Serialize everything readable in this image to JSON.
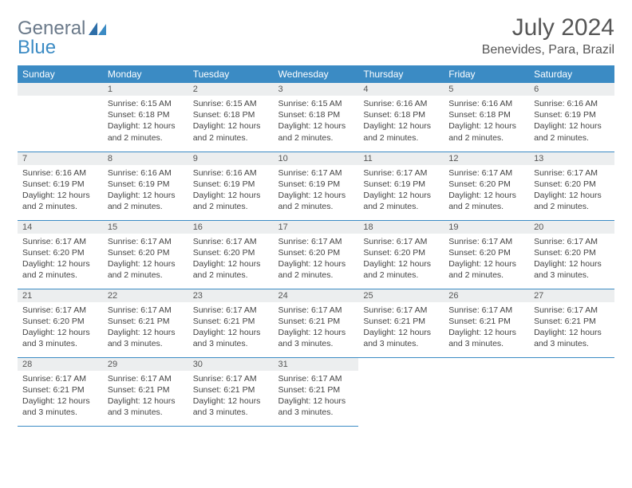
{
  "brand": {
    "word1": "General",
    "word2": "Blue"
  },
  "title": "July 2024",
  "location": "Benevides, Para, Brazil",
  "weekdays": [
    "Sunday",
    "Monday",
    "Tuesday",
    "Wednesday",
    "Thursday",
    "Friday",
    "Saturday"
  ],
  "colors": {
    "header_bg": "#3b8bc4",
    "stripe_bg": "#eceeef",
    "text": "#565656"
  },
  "weeks": [
    [
      {
        "n": "",
        "lines": []
      },
      {
        "n": "1",
        "lines": [
          "Sunrise: 6:15 AM",
          "Sunset: 6:18 PM",
          "Daylight: 12 hours and 2 minutes."
        ]
      },
      {
        "n": "2",
        "lines": [
          "Sunrise: 6:15 AM",
          "Sunset: 6:18 PM",
          "Daylight: 12 hours and 2 minutes."
        ]
      },
      {
        "n": "3",
        "lines": [
          "Sunrise: 6:15 AM",
          "Sunset: 6:18 PM",
          "Daylight: 12 hours and 2 minutes."
        ]
      },
      {
        "n": "4",
        "lines": [
          "Sunrise: 6:16 AM",
          "Sunset: 6:18 PM",
          "Daylight: 12 hours and 2 minutes."
        ]
      },
      {
        "n": "5",
        "lines": [
          "Sunrise: 6:16 AM",
          "Sunset: 6:18 PM",
          "Daylight: 12 hours and 2 minutes."
        ]
      },
      {
        "n": "6",
        "lines": [
          "Sunrise: 6:16 AM",
          "Sunset: 6:19 PM",
          "Daylight: 12 hours and 2 minutes."
        ]
      }
    ],
    [
      {
        "n": "7",
        "lines": [
          "Sunrise: 6:16 AM",
          "Sunset: 6:19 PM",
          "Daylight: 12 hours and 2 minutes."
        ]
      },
      {
        "n": "8",
        "lines": [
          "Sunrise: 6:16 AM",
          "Sunset: 6:19 PM",
          "Daylight: 12 hours and 2 minutes."
        ]
      },
      {
        "n": "9",
        "lines": [
          "Sunrise: 6:16 AM",
          "Sunset: 6:19 PM",
          "Daylight: 12 hours and 2 minutes."
        ]
      },
      {
        "n": "10",
        "lines": [
          "Sunrise: 6:17 AM",
          "Sunset: 6:19 PM",
          "Daylight: 12 hours and 2 minutes."
        ]
      },
      {
        "n": "11",
        "lines": [
          "Sunrise: 6:17 AM",
          "Sunset: 6:19 PM",
          "Daylight: 12 hours and 2 minutes."
        ]
      },
      {
        "n": "12",
        "lines": [
          "Sunrise: 6:17 AM",
          "Sunset: 6:20 PM",
          "Daylight: 12 hours and 2 minutes."
        ]
      },
      {
        "n": "13",
        "lines": [
          "Sunrise: 6:17 AM",
          "Sunset: 6:20 PM",
          "Daylight: 12 hours and 2 minutes."
        ]
      }
    ],
    [
      {
        "n": "14",
        "lines": [
          "Sunrise: 6:17 AM",
          "Sunset: 6:20 PM",
          "Daylight: 12 hours and 2 minutes."
        ]
      },
      {
        "n": "15",
        "lines": [
          "Sunrise: 6:17 AM",
          "Sunset: 6:20 PM",
          "Daylight: 12 hours and 2 minutes."
        ]
      },
      {
        "n": "16",
        "lines": [
          "Sunrise: 6:17 AM",
          "Sunset: 6:20 PM",
          "Daylight: 12 hours and 2 minutes."
        ]
      },
      {
        "n": "17",
        "lines": [
          "Sunrise: 6:17 AM",
          "Sunset: 6:20 PM",
          "Daylight: 12 hours and 2 minutes."
        ]
      },
      {
        "n": "18",
        "lines": [
          "Sunrise: 6:17 AM",
          "Sunset: 6:20 PM",
          "Daylight: 12 hours and 2 minutes."
        ]
      },
      {
        "n": "19",
        "lines": [
          "Sunrise: 6:17 AM",
          "Sunset: 6:20 PM",
          "Daylight: 12 hours and 2 minutes."
        ]
      },
      {
        "n": "20",
        "lines": [
          "Sunrise: 6:17 AM",
          "Sunset: 6:20 PM",
          "Daylight: 12 hours and 3 minutes."
        ]
      }
    ],
    [
      {
        "n": "21",
        "lines": [
          "Sunrise: 6:17 AM",
          "Sunset: 6:20 PM",
          "Daylight: 12 hours and 3 minutes."
        ]
      },
      {
        "n": "22",
        "lines": [
          "Sunrise: 6:17 AM",
          "Sunset: 6:21 PM",
          "Daylight: 12 hours and 3 minutes."
        ]
      },
      {
        "n": "23",
        "lines": [
          "Sunrise: 6:17 AM",
          "Sunset: 6:21 PM",
          "Daylight: 12 hours and 3 minutes."
        ]
      },
      {
        "n": "24",
        "lines": [
          "Sunrise: 6:17 AM",
          "Sunset: 6:21 PM",
          "Daylight: 12 hours and 3 minutes."
        ]
      },
      {
        "n": "25",
        "lines": [
          "Sunrise: 6:17 AM",
          "Sunset: 6:21 PM",
          "Daylight: 12 hours and 3 minutes."
        ]
      },
      {
        "n": "26",
        "lines": [
          "Sunrise: 6:17 AM",
          "Sunset: 6:21 PM",
          "Daylight: 12 hours and 3 minutes."
        ]
      },
      {
        "n": "27",
        "lines": [
          "Sunrise: 6:17 AM",
          "Sunset: 6:21 PM",
          "Daylight: 12 hours and 3 minutes."
        ]
      }
    ],
    [
      {
        "n": "28",
        "lines": [
          "Sunrise: 6:17 AM",
          "Sunset: 6:21 PM",
          "Daylight: 12 hours and 3 minutes."
        ]
      },
      {
        "n": "29",
        "lines": [
          "Sunrise: 6:17 AM",
          "Sunset: 6:21 PM",
          "Daylight: 12 hours and 3 minutes."
        ]
      },
      {
        "n": "30",
        "lines": [
          "Sunrise: 6:17 AM",
          "Sunset: 6:21 PM",
          "Daylight: 12 hours and 3 minutes."
        ]
      },
      {
        "n": "31",
        "lines": [
          "Sunrise: 6:17 AM",
          "Sunset: 6:21 PM",
          "Daylight: 12 hours and 3 minutes."
        ]
      },
      {
        "n": "",
        "lines": [],
        "blank": true
      },
      {
        "n": "",
        "lines": [],
        "blank": true
      },
      {
        "n": "",
        "lines": [],
        "blank": true
      }
    ]
  ]
}
